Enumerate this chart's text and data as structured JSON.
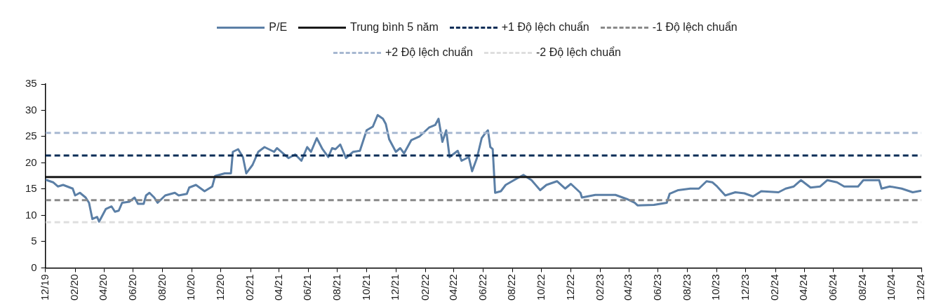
{
  "chart_data": {
    "type": "line",
    "legend": "top",
    "grid": false,
    "marker": "none",
    "xlim": [
      "2019-12",
      "2024-12"
    ],
    "xticks": [
      {
        "value": "2019-12",
        "label": "12/19"
      },
      {
        "value": "2020-02",
        "label": "02/20"
      },
      {
        "value": "2020-04",
        "label": "04/20"
      },
      {
        "value": "2020-06",
        "label": "06/20"
      },
      {
        "value": "2020-08",
        "label": "08/20"
      },
      {
        "value": "2020-10",
        "label": "10/20"
      },
      {
        "value": "2020-12",
        "label": "12/20"
      },
      {
        "value": "2021-02",
        "label": "02/21"
      },
      {
        "value": "2021-04",
        "label": "04/21"
      },
      {
        "value": "2021-06",
        "label": "06/21"
      },
      {
        "value": "2021-08",
        "label": "08/21"
      },
      {
        "value": "2021-10",
        "label": "10/21"
      },
      {
        "value": "2021-12",
        "label": "12/21"
      },
      {
        "value": "2022-02",
        "label": "02/22"
      },
      {
        "value": "2022-04",
        "label": "04/22"
      },
      {
        "value": "2022-06",
        "label": "06/22"
      },
      {
        "value": "2022-08",
        "label": "08/22"
      },
      {
        "value": "2022-10",
        "label": "10/22"
      },
      {
        "value": "2022-12",
        "label": "12/22"
      },
      {
        "value": "2023-02",
        "label": "02/23"
      },
      {
        "value": "2023-04",
        "label": "04/23"
      },
      {
        "value": "2023-06",
        "label": "06/23"
      },
      {
        "value": "2023-08",
        "label": "08/23"
      },
      {
        "value": "2023-10",
        "label": "10/23"
      },
      {
        "value": "2023-12",
        "label": "12/23"
      },
      {
        "value": "2024-02",
        "label": "02/24"
      },
      {
        "value": "2024-04",
        "label": "04/24"
      },
      {
        "value": "2024-06",
        "label": "06/24"
      },
      {
        "value": "2024-08",
        "label": "08/24"
      },
      {
        "value": "2024-10",
        "label": "10/24"
      },
      {
        "value": "2024-12",
        "label": "12/24"
      }
    ],
    "ylim": [
      0,
      35
    ],
    "yticks": [
      0,
      5,
      10,
      15,
      20,
      25,
      30,
      35
    ],
    "series": [
      {
        "name": "P/E",
        "color": "#5b7fa6",
        "line_style": "solid",
        "x": [
          "2019-12-01",
          "2019-12-17",
          "2019-12-27",
          "2020-01-07",
          "2020-01-27",
          "2020-02-01",
          "2020-02-11",
          "2020-02-23",
          "2020-03-01",
          "2020-03-08",
          "2020-03-18",
          "2020-03-22",
          "2020-04-05",
          "2020-04-17",
          "2020-04-24",
          "2020-05-02",
          "2020-05-09",
          "2020-05-24",
          "2020-06-04",
          "2020-06-11",
          "2020-06-23",
          "2020-06-28",
          "2020-07-05",
          "2020-07-15",
          "2020-07-22",
          "2020-08-07",
          "2020-08-27",
          "2020-09-04",
          "2020-09-21",
          "2020-09-26",
          "2020-10-10",
          "2020-10-28",
          "2020-11-13",
          "2020-11-19",
          "2020-12-09",
          "2020-12-22",
          "2020-12-26",
          "2021-01-06",
          "2021-01-16",
          "2021-01-23",
          "2021-02-05",
          "2021-02-17",
          "2021-03-02",
          "2021-03-22",
          "2021-03-28",
          "2021-04-21",
          "2021-05-05",
          "2021-05-18",
          "2021-05-30",
          "2021-06-07",
          "2021-06-19",
          "2021-07-01",
          "2021-07-13",
          "2021-07-21",
          "2021-07-28",
          "2021-08-07",
          "2021-08-19",
          "2021-09-03",
          "2021-09-17",
          "2021-10-01",
          "2021-10-14",
          "2021-10-24",
          "2021-11-04",
          "2021-11-10",
          "2021-11-17",
          "2021-12-01",
          "2021-12-10",
          "2021-12-18",
          "2022-01-02",
          "2022-01-19",
          "2022-02-08",
          "2022-02-21",
          "2022-02-28",
          "2022-03-08",
          "2022-03-16",
          "2022-03-23",
          "2022-04-09",
          "2022-04-17",
          "2022-05-02",
          "2022-05-09",
          "2022-05-19",
          "2022-05-29",
          "2022-06-06",
          "2022-06-11",
          "2022-06-16",
          "2022-06-21",
          "2022-06-26",
          "2022-07-08",
          "2022-07-18",
          "2022-08-10",
          "2022-08-24",
          "2022-09-10",
          "2022-09-28",
          "2022-10-11",
          "2022-11-02",
          "2022-11-19",
          "2022-12-01",
          "2022-12-21",
          "2022-12-24",
          "2023-01-21",
          "2023-02-15",
          "2023-03-04",
          "2023-03-28",
          "2023-04-13",
          "2023-04-19",
          "2023-05-23",
          "2023-06-19",
          "2023-06-25",
          "2023-07-13",
          "2023-08-07",
          "2023-08-25",
          "2023-09-10",
          "2023-09-22",
          "2023-10-02",
          "2023-10-19",
          "2023-11-09",
          "2023-11-28",
          "2023-12-16",
          "2024-01-02",
          "2024-02-07",
          "2024-02-22",
          "2024-03-10",
          "2024-03-25",
          "2024-04-14",
          "2024-05-04",
          "2024-05-19",
          "2024-06-08",
          "2024-06-23",
          "2024-07-22",
          "2024-08-02",
          "2024-09-04",
          "2024-09-09",
          "2024-09-26",
          "2024-10-21",
          "2024-11-13",
          "2024-12-01"
        ],
        "values": [
          16.8,
          16.3,
          15.5,
          15.8,
          15.1,
          13.8,
          14.3,
          13.4,
          12.4,
          9.3,
          9.7,
          8.8,
          11.2,
          11.7,
          10.7,
          10.9,
          12.4,
          12.6,
          13.4,
          12.2,
          12.2,
          13.8,
          14.3,
          13.4,
          12.4,
          13.8,
          14.3,
          13.8,
          14.1,
          15.3,
          15.8,
          14.6,
          15.5,
          17.5,
          18.0,
          18.0,
          22.1,
          22.6,
          21.1,
          18.0,
          19.6,
          22.1,
          23.0,
          22.1,
          22.8,
          20.9,
          21.6,
          20.4,
          23.0,
          22.1,
          24.7,
          22.6,
          21.1,
          22.8,
          22.6,
          23.5,
          20.9,
          22.1,
          22.3,
          26.2,
          26.9,
          29.1,
          28.4,
          27.4,
          24.5,
          22.1,
          22.8,
          21.8,
          24.3,
          25.0,
          26.7,
          27.2,
          28.4,
          24.0,
          26.2,
          21.1,
          22.3,
          20.4,
          21.1,
          18.4,
          20.9,
          24.7,
          25.7,
          26.2,
          23.0,
          22.6,
          14.3,
          14.6,
          15.8,
          17.0,
          17.7,
          16.7,
          14.8,
          15.8,
          16.5,
          15.1,
          16.0,
          14.3,
          13.4,
          13.9,
          13.9,
          13.9,
          13.1,
          12.4,
          11.9,
          12.0,
          12.4,
          14.1,
          14.8,
          15.1,
          15.1,
          16.5,
          16.3,
          15.5,
          13.8,
          14.4,
          14.2,
          13.6,
          14.6,
          14.4,
          15.1,
          15.5,
          16.7,
          15.3,
          15.5,
          16.7,
          16.3,
          15.5,
          15.5,
          16.7,
          16.7,
          15.1,
          15.5,
          15.1,
          14.4,
          14.7
        ]
      },
      {
        "name": "Trung bình 5 năm",
        "color": "#1a1a1a",
        "line_style": "solid",
        "x": [
          "2019-12",
          "2024-12"
        ],
        "values": [
          17.3,
          17.3
        ]
      },
      {
        "name": "+1 Độ lệch chuẩn",
        "color": "#0b2d57",
        "line_style": "dashed",
        "x": [
          "2019-12",
          "2024-12"
        ],
        "values": [
          21.4,
          21.4
        ]
      },
      {
        "name": "-1 Độ lệch chuẩn",
        "color": "#898989",
        "line_style": "dashed",
        "x": [
          "2019-12",
          "2024-12"
        ],
        "values": [
          12.9,
          12.9
        ]
      },
      {
        "name": "+2 Độ lệch chuẩn",
        "color": "#a7b8d1",
        "line_style": "dashed",
        "x": [
          "2019-12",
          "2024-12"
        ],
        "values": [
          25.7,
          25.7
        ]
      },
      {
        "name": "-2 Độ lệch chuẩn",
        "color": "#dedede",
        "line_style": "dashed",
        "x": [
          "2019-12",
          "2024-12"
        ],
        "values": [
          8.7,
          8.7
        ]
      }
    ]
  }
}
